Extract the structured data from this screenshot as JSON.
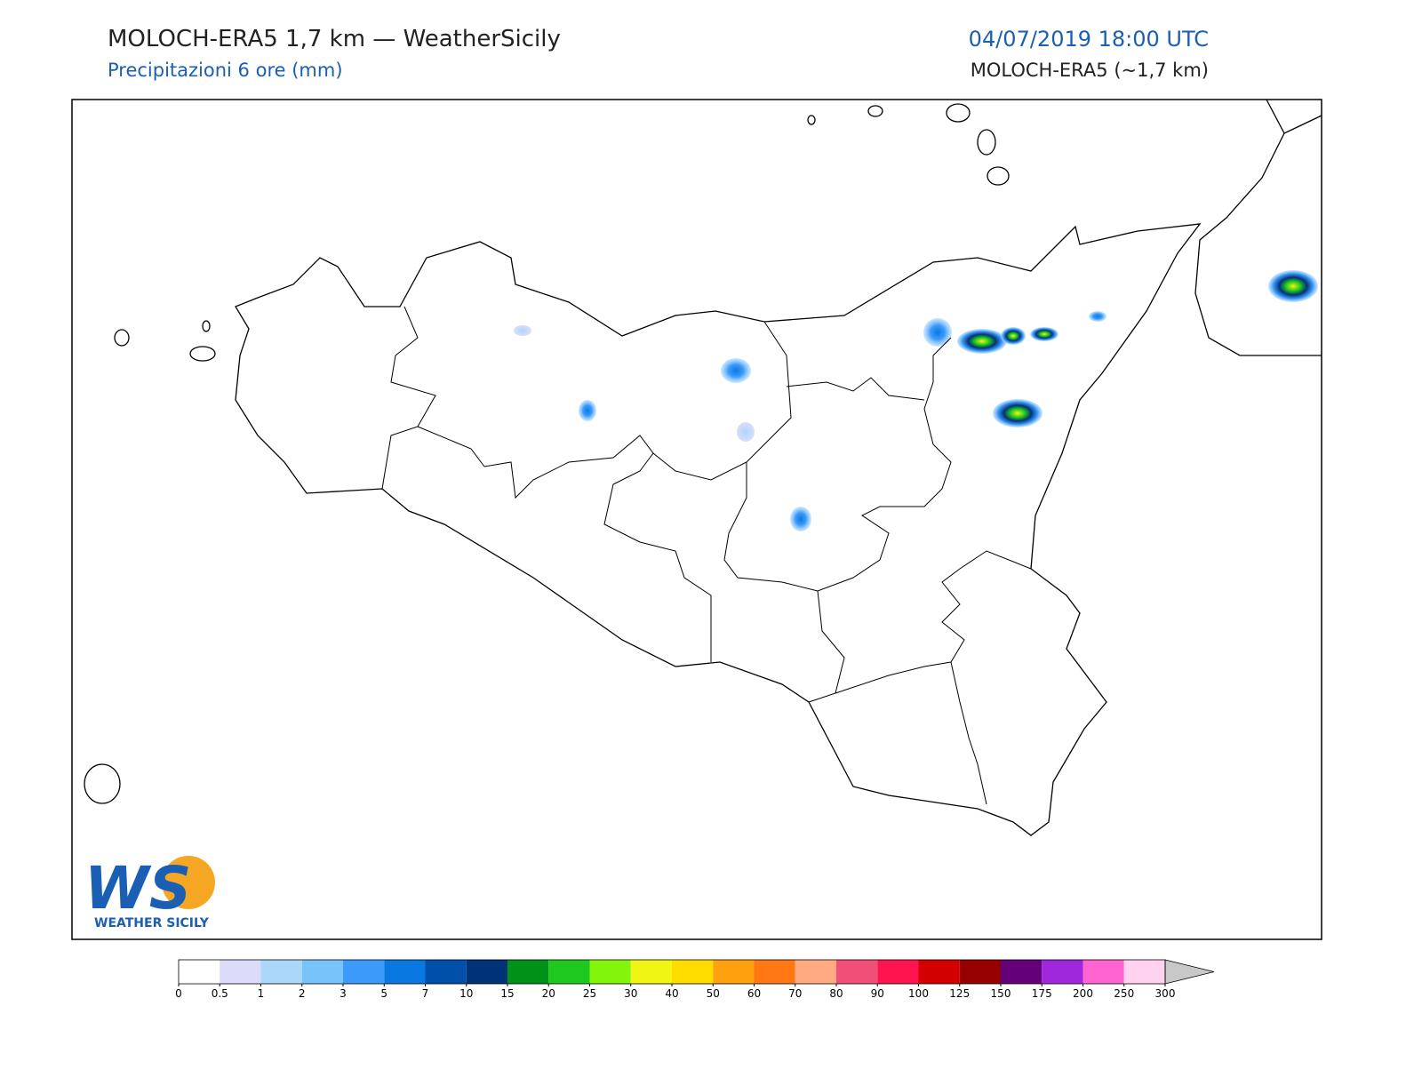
{
  "header": {
    "title": "MOLOCH-ERA5 1,7 km — WeatherSicily",
    "subtitle": "Precipitazioni 6 ore (mm)",
    "date": "04/07/2019 18:00 UTC",
    "model": "MOLOCH-ERA5 (~1,7 km)"
  },
  "legend": {
    "ticks": [
      0,
      0.5,
      1,
      2,
      3,
      5,
      7,
      10,
      15,
      20,
      25,
      30,
      40,
      50,
      60,
      70,
      80,
      90,
      100,
      125,
      150,
      175,
      200,
      250,
      300
    ],
    "colors": [
      "#ffffff",
      "#dcdcfa",
      "#aad7fa",
      "#78c3fa",
      "#3c9bfa",
      "#0a78e1",
      "#0050aa",
      "#003278",
      "#009119",
      "#1ec81e",
      "#82f50a",
      "#f0f514",
      "#ffdc00",
      "#ffa00f",
      "#ff7814",
      "#ffaa82",
      "#f05078",
      "#ff1450",
      "#d20000",
      "#960000",
      "#640078",
      "#a028dc",
      "#ff64d2",
      "#ffd2f0"
    ],
    "over_color": "#c8c8c8"
  },
  "logo": {
    "initials": "WS",
    "name": "WEATHER SICILY"
  }
}
